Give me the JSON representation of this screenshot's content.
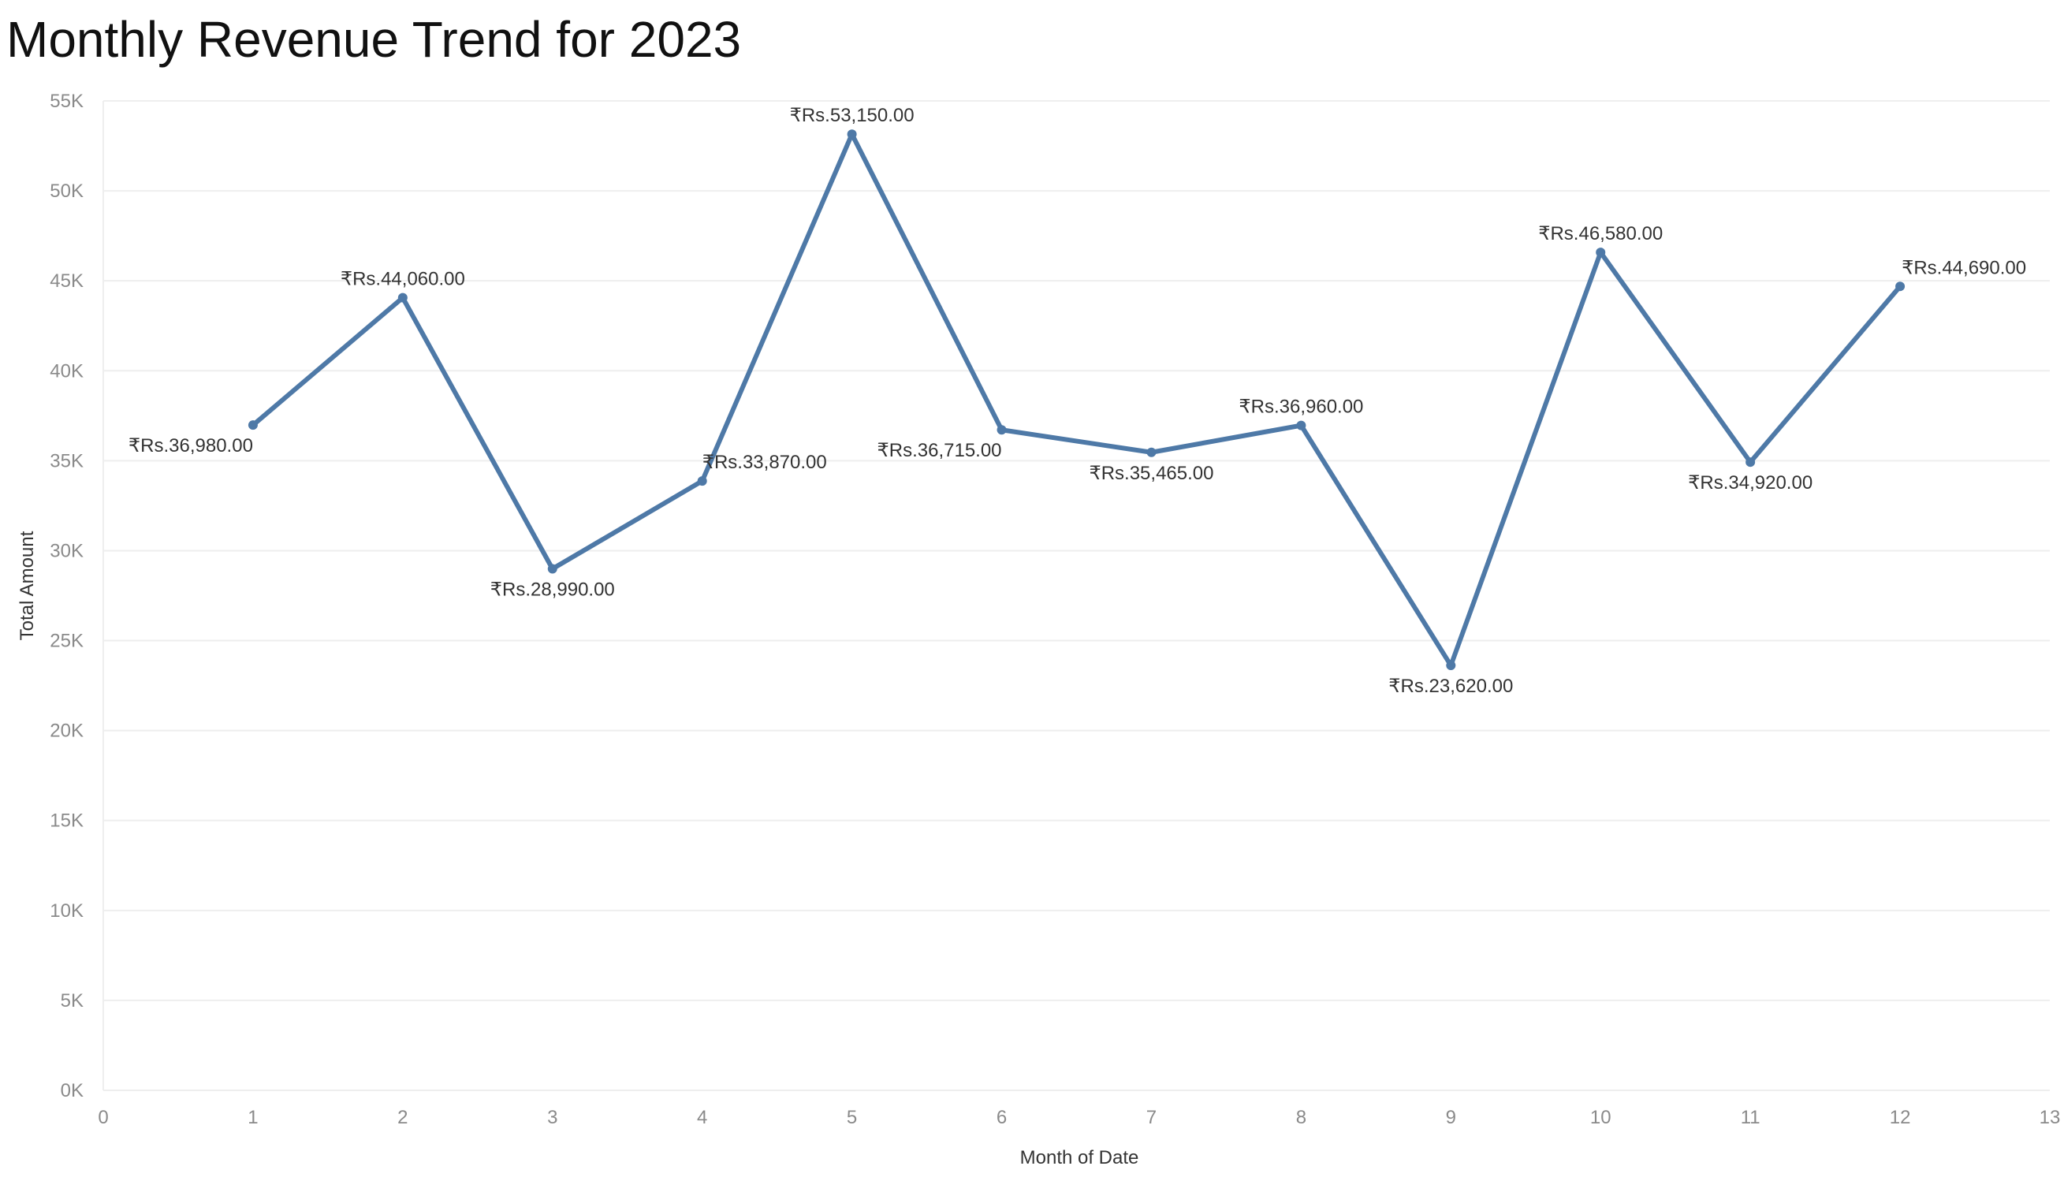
{
  "chart_data": {
    "type": "line",
    "title": "Monthly Revenue Trend for 2023",
    "xlabel": "Month of Date",
    "ylabel": "Total Amount",
    "xlim": [
      0,
      13
    ],
    "ylim": [
      0,
      55000
    ],
    "x_ticks": [
      "0",
      "1",
      "2",
      "3",
      "4",
      "5",
      "6",
      "7",
      "8",
      "9",
      "10",
      "11",
      "12",
      "13"
    ],
    "y_ticks": [
      "0K",
      "5K",
      "10K",
      "15K",
      "20K",
      "25K",
      "30K",
      "35K",
      "40K",
      "45K",
      "50K",
      "55K"
    ],
    "grid": true,
    "legend": "none",
    "series": [
      {
        "color": "#4e79a7",
        "x": [
          1,
          2,
          3,
          4,
          5,
          6,
          7,
          8,
          9,
          10,
          11,
          12
        ],
        "values": [
          36980,
          44060,
          28990,
          33870,
          53150,
          36715,
          35465,
          36960,
          23620,
          46580,
          34920,
          44690
        ],
        "labels": [
          "₹Rs.36,980.00",
          "₹Rs.44,060.00",
          "₹Rs.28,990.00",
          "₹Rs.33,870.00",
          "₹Rs.53,150.00",
          "₹Rs.36,715.00",
          "₹Rs.35,465.00",
          "₹Rs.36,960.00",
          "₹Rs.23,620.00",
          "₹Rs.46,580.00",
          "₹Rs.34,920.00",
          "₹Rs.44,690.00"
        ]
      }
    ]
  }
}
